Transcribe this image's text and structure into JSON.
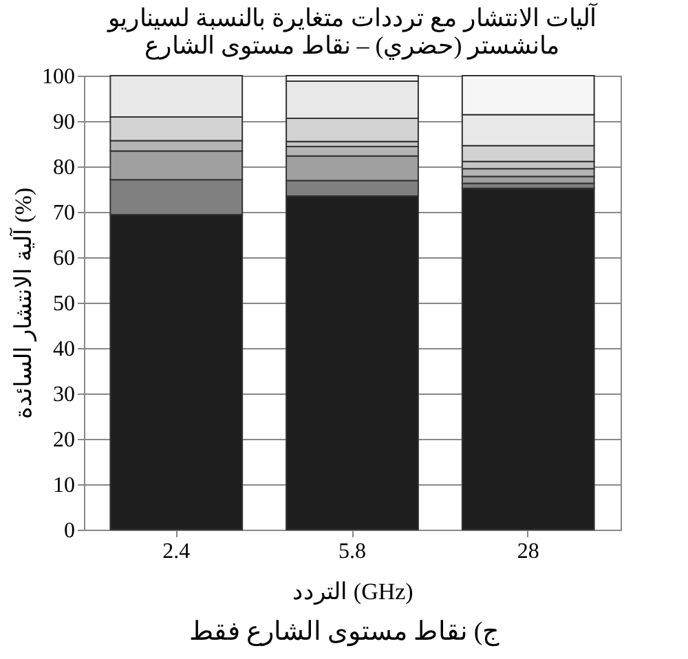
{
  "chart_data": {
    "type": "bar",
    "stacked": true,
    "title": "آليات الانتشار مع ترددات متغايرة بالنسبة لسيناريو\nمانشستر (حضري) – نقاط مستوى الشارع",
    "xlabel": "التردد (GHz)",
    "ylabel": "آلية الانتشار السائدة (%)",
    "categories": [
      "2.4",
      "5.8",
      "28"
    ],
    "series": [
      {
        "color": "#1e1e1e",
        "values": [
          69.4,
          73.5,
          75.2
        ]
      },
      {
        "color": "#808080",
        "values": [
          7.7,
          3.4,
          1.1
        ]
      },
      {
        "color": "#a0a0a0",
        "values": [
          6.3,
          5.4,
          1.5
        ]
      },
      {
        "color": "#b4b4b4",
        "values": [
          2.3,
          2.1,
          1.7
        ]
      },
      {
        "color": "#c4c4c4",
        "values": [
          null,
          1.1,
          1.6
        ]
      },
      {
        "color": "#d2d2d2",
        "values": [
          5.2,
          5.1,
          3.5
        ]
      },
      {
        "color": "#e8e8e8",
        "values": [
          9.1,
          8.2,
          6.8
        ]
      },
      {
        "color": "#f6f6f6",
        "values": [
          null,
          1.2,
          8.6
        ]
      }
    ],
    "ylim": [
      0,
      100
    ],
    "yticks": [
      0,
      10,
      20,
      30,
      40,
      50,
      60,
      70,
      80,
      90,
      100
    ],
    "grid": "y",
    "legend": false,
    "annotations": [
      "ج) نقاط مستوى الشارع فقط"
    ]
  }
}
